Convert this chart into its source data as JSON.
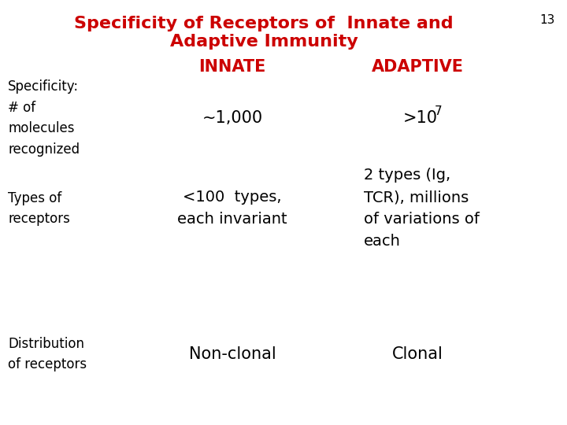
{
  "title_line1": "Specificity of Receptors of  Innate and",
  "title_line2": "Adaptive Immunity",
  "title_color": "#CC0000",
  "slide_number": "13",
  "background_color": "#FFFFFF",
  "col_headers": [
    "INNATE",
    "ADAPTIVE"
  ],
  "col_header_color": "#CC0000",
  "row_labels": [
    "Specificity:\n# of\nmolecules\nrecognized",
    "Types of\nreceptors",
    "Distribution\nof receptors"
  ],
  "row_label_color": "#000000",
  "innate_values": [
    "~1,000",
    "<100  types,\neach invariant",
    "Non-clonal"
  ],
  "adaptive_values_row1_base": ">10",
  "adaptive_values_row1_super": "7",
  "adaptive_values_row2": "2 types (Ig,\nTCR), millions\nof variations of\neach",
  "adaptive_values_row3": "Clonal",
  "cell_color": "#000000",
  "font_title": "Comic Sans MS",
  "font_body": "Comic Sans MS",
  "title_fontsize": 16,
  "header_fontsize": 15,
  "body_fontsize": 13,
  "label_fontsize": 12,
  "number_fontsize": 11
}
